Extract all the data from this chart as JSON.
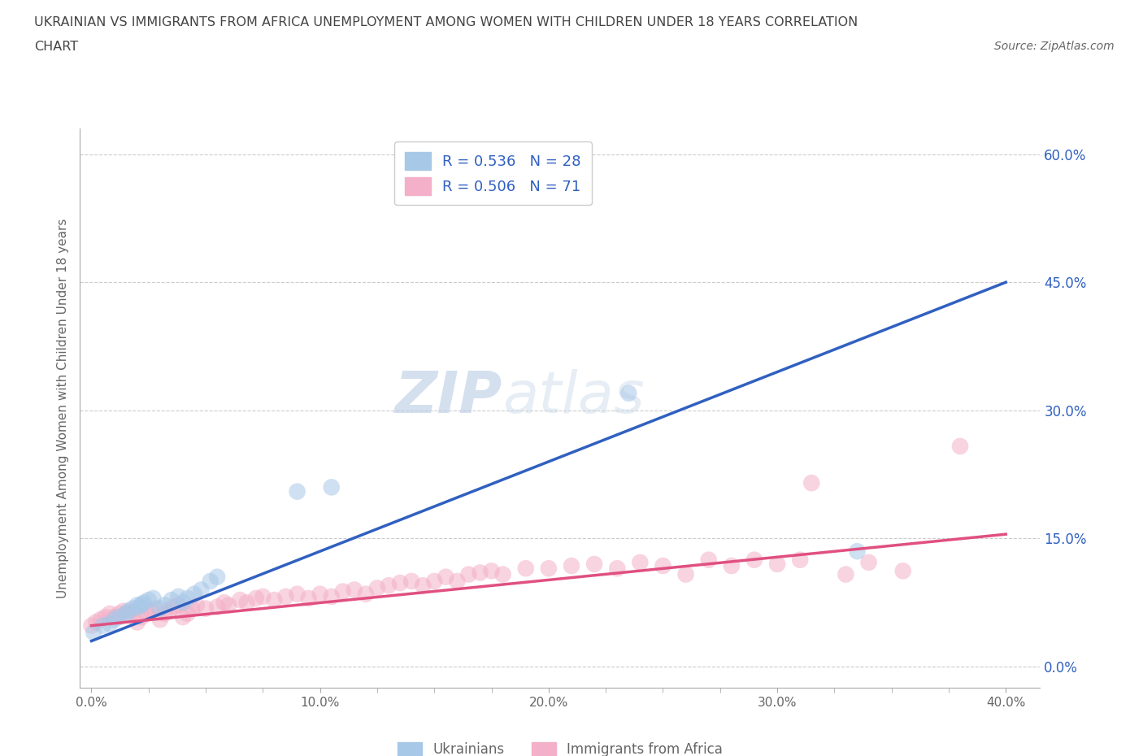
{
  "title_line1": "UKRAINIAN VS IMMIGRANTS FROM AFRICA UNEMPLOYMENT AMONG WOMEN WITH CHILDREN UNDER 18 YEARS CORRELATION",
  "title_line2": "CHART",
  "source_text": "Source: ZipAtlas.com",
  "ylabel": "Unemployment Among Women with Children Under 18 years",
  "xlabel_ticks": [
    "0.0%",
    "",
    "",
    "",
    "10.0%",
    "",
    "",
    "",
    "20.0%",
    "",
    "",
    "",
    "30.0%",
    "",
    "",
    "",
    "40.0%"
  ],
  "ylabel_right_ticks": [
    "0.0%",
    "15.0%",
    "30.0%",
    "45.0%",
    "60.0%"
  ],
  "xtick_vals": [
    0.0,
    0.025,
    0.05,
    0.075,
    0.1,
    0.125,
    0.15,
    0.175,
    0.2,
    0.225,
    0.25,
    0.275,
    0.3,
    0.325,
    0.35,
    0.375,
    0.4
  ],
  "ytick_vals": [
    0.0,
    0.15,
    0.3,
    0.45,
    0.6
  ],
  "xlim": [
    -0.005,
    0.415
  ],
  "ylim": [
    -0.025,
    0.63
  ],
  "blue_scatter_x": [
    0.001,
    0.005,
    0.008,
    0.01,
    0.012,
    0.015,
    0.016,
    0.018,
    0.02,
    0.021,
    0.022,
    0.023,
    0.025,
    0.027,
    0.03,
    0.032,
    0.035,
    0.038,
    0.04,
    0.042,
    0.045,
    0.048,
    0.052,
    0.055,
    0.09,
    0.105,
    0.235,
    0.335
  ],
  "blue_scatter_y": [
    0.04,
    0.048,
    0.05,
    0.055,
    0.058,
    0.062,
    0.065,
    0.068,
    0.072,
    0.07,
    0.073,
    0.075,
    0.078,
    0.08,
    0.068,
    0.072,
    0.078,
    0.082,
    0.075,
    0.08,
    0.085,
    0.09,
    0.1,
    0.105,
    0.205,
    0.21,
    0.32,
    0.135
  ],
  "pink_scatter_x": [
    0.0,
    0.002,
    0.004,
    0.006,
    0.008,
    0.01,
    0.012,
    0.014,
    0.016,
    0.018,
    0.02,
    0.022,
    0.024,
    0.026,
    0.028,
    0.03,
    0.032,
    0.034,
    0.036,
    0.038,
    0.04,
    0.042,
    0.044,
    0.046,
    0.05,
    0.055,
    0.058,
    0.06,
    0.065,
    0.068,
    0.072,
    0.075,
    0.08,
    0.085,
    0.09,
    0.095,
    0.1,
    0.105,
    0.11,
    0.115,
    0.12,
    0.125,
    0.13,
    0.135,
    0.14,
    0.145,
    0.15,
    0.155,
    0.16,
    0.165,
    0.17,
    0.175,
    0.18,
    0.19,
    0.2,
    0.21,
    0.22,
    0.23,
    0.24,
    0.25,
    0.26,
    0.27,
    0.28,
    0.29,
    0.3,
    0.31,
    0.315,
    0.33,
    0.34,
    0.355,
    0.38
  ],
  "pink_scatter_y": [
    0.048,
    0.052,
    0.055,
    0.058,
    0.062,
    0.058,
    0.062,
    0.065,
    0.062,
    0.065,
    0.052,
    0.058,
    0.062,
    0.065,
    0.068,
    0.055,
    0.062,
    0.065,
    0.07,
    0.072,
    0.058,
    0.062,
    0.068,
    0.072,
    0.068,
    0.07,
    0.075,
    0.072,
    0.078,
    0.075,
    0.08,
    0.082,
    0.078,
    0.082,
    0.085,
    0.08,
    0.085,
    0.082,
    0.088,
    0.09,
    0.085,
    0.092,
    0.095,
    0.098,
    0.1,
    0.095,
    0.1,
    0.105,
    0.1,
    0.108,
    0.11,
    0.112,
    0.108,
    0.115,
    0.115,
    0.118,
    0.12,
    0.115,
    0.122,
    0.118,
    0.108,
    0.125,
    0.118,
    0.125,
    0.12,
    0.125,
    0.215,
    0.108,
    0.122,
    0.112,
    0.258
  ],
  "blue_line_x": [
    0.0,
    0.4
  ],
  "blue_line_y": [
    0.03,
    0.45
  ],
  "pink_line_x": [
    0.0,
    0.4
  ],
  "pink_line_y": [
    0.048,
    0.155
  ],
  "legend_blue_label": "R = 0.536   N = 28",
  "legend_pink_label": "R = 0.506   N = 71",
  "blue_scatter_color": "#a8c8e8",
  "pink_scatter_color": "#f4b0c8",
  "blue_line_color": "#3060c0",
  "pink_line_color": "#e05080",
  "scatter_size": 220,
  "scatter_alpha": 0.55,
  "grid_color": "#cccccc",
  "title_color": "#444444",
  "label_color": "#3060c0",
  "legend_label_blue": "Ukrainians",
  "legend_label_pink": "Immigrants from Africa",
  "background_color": "#ffffff",
  "tick_color": "#666666",
  "right_tick_color": "#3060c0"
}
